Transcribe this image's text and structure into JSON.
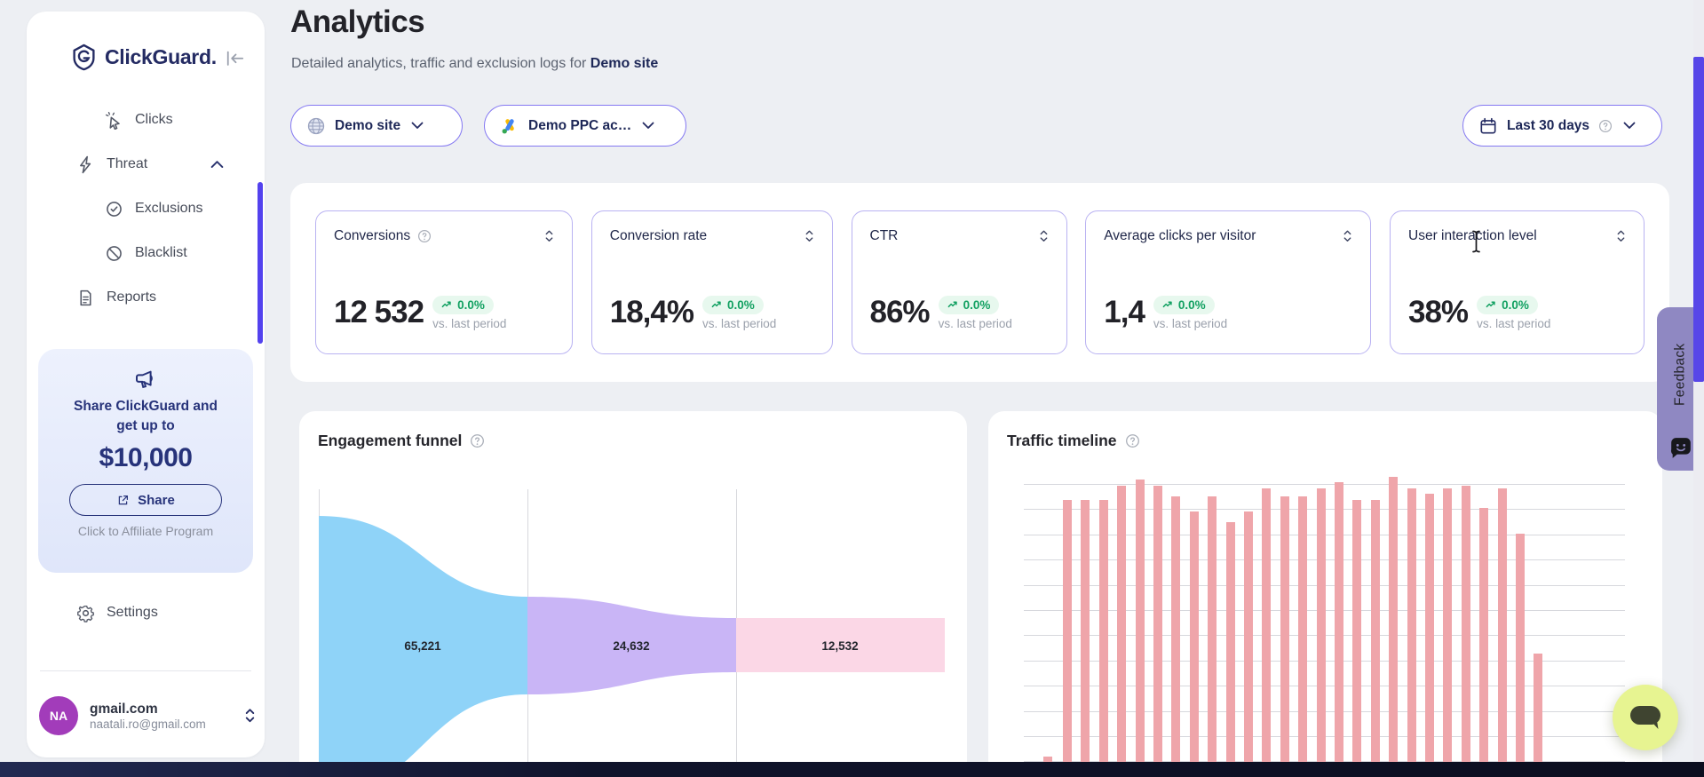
{
  "brand": {
    "name": "ClickGuard.",
    "logo_icon": "shield-g-icon"
  },
  "sidebar": {
    "nav": [
      {
        "label": "Clicks",
        "icon": "cursor-click-icon",
        "indent": true
      },
      {
        "label": "Threat",
        "icon": "lightning-icon",
        "expanded": true
      },
      {
        "label": "Exclusions",
        "icon": "badge-check-icon",
        "indent": true
      },
      {
        "label": "Blacklist",
        "icon": "ban-icon",
        "indent": true
      },
      {
        "label": "Reports",
        "icon": "document-icon"
      }
    ],
    "promo": {
      "icon": "megaphone-icon",
      "headline": "Share ClickGuard and get up to",
      "amount": "$10,000",
      "share_label": "Share",
      "share_icon": "external-link-icon",
      "footnote": "Click to Affiliate Program"
    },
    "settings_label": "Settings",
    "account": {
      "initials": "NA",
      "title": "gmail.com",
      "email": "naatali.ro@gmail.com"
    }
  },
  "header": {
    "title": "Analytics",
    "subtitle_prefix": "Detailed analytics, traffic and exclusion logs for ",
    "subtitle_site": "Demo site"
  },
  "filters": {
    "site": {
      "label": "Demo site",
      "icon": "globe-icon"
    },
    "ppc_account": {
      "label": "Demo PPC ac…",
      "icon": "google-ads-icon"
    },
    "date_range": {
      "label": "Last 30 days",
      "icon": "calendar-icon",
      "has_help": true
    }
  },
  "kpis": [
    {
      "label": "Conversions",
      "help": true,
      "value": "12 532",
      "delta": "0.0%",
      "delta_caption": "vs. last period"
    },
    {
      "label": "Conversion rate",
      "help": false,
      "value": "18,4%",
      "delta": "0.0%",
      "delta_caption": "vs. last period"
    },
    {
      "label": "CTR",
      "help": false,
      "value": "86%",
      "delta": "0.0%",
      "delta_caption": "vs. last period"
    },
    {
      "label": "Average clicks per visitor",
      "help": false,
      "value": "1,4",
      "delta": "0.0%",
      "delta_caption": "vs. last period"
    },
    {
      "label": "User interaction level",
      "help": false,
      "value": "38%",
      "delta": "0.0%",
      "delta_caption": "vs. last period"
    }
  ],
  "chart_data": [
    {
      "id": "engagement-funnel",
      "type": "funnel",
      "title": "Engagement funnel",
      "stages": [
        {
          "label": "65,221",
          "value": 65221,
          "color": "#8fd3f8"
        },
        {
          "label": "24,632",
          "value": 24632,
          "color": "#c9b5f6"
        },
        {
          "label": "12,532",
          "value": 12532,
          "color": "#fbd7e6"
        }
      ],
      "legend": "none",
      "axes": "none (stage boundaries shown as vertical gridlines)"
    },
    {
      "id": "traffic-timeline",
      "type": "bar",
      "title": "Traffic timeline",
      "values_pct": [
        2,
        92,
        92,
        92,
        97,
        99,
        97,
        93,
        88,
        93,
        84,
        88,
        96,
        93,
        93,
        96,
        98,
        92,
        92,
        100,
        96,
        94,
        96,
        97,
        89,
        96,
        80,
        38
      ],
      "bar_count": 28,
      "bar_color": "#efa5aa",
      "ylabel": "",
      "xlabel": "",
      "grid": "horizontal",
      "note": "y-axis unlabeled; values are percent of tallest bar; chart bottom clipped by viewport"
    }
  ],
  "feedback": {
    "label": "Feedback",
    "icon": "chat-smile-icon"
  },
  "chat": {
    "icon": "speech-bubble-icon"
  },
  "colors": {
    "accent": "#5746e8",
    "kpi_border": "#b9b2f2",
    "pill_border": "#8478f2",
    "badge_green": "#13a162",
    "badge_bg": "#e7f8ee",
    "funnel_blue": "#8fd3f8",
    "funnel_purple": "#c9b5f6",
    "funnel_pink": "#fbd7e6",
    "bar_pink": "#efa5aa",
    "promo_navy": "#27337a",
    "feedback_bg": "#8f88c2",
    "chat_lime": "#e7f491",
    "bottom_bar": "#10142c",
    "avatar_purple": "#a23cba"
  }
}
